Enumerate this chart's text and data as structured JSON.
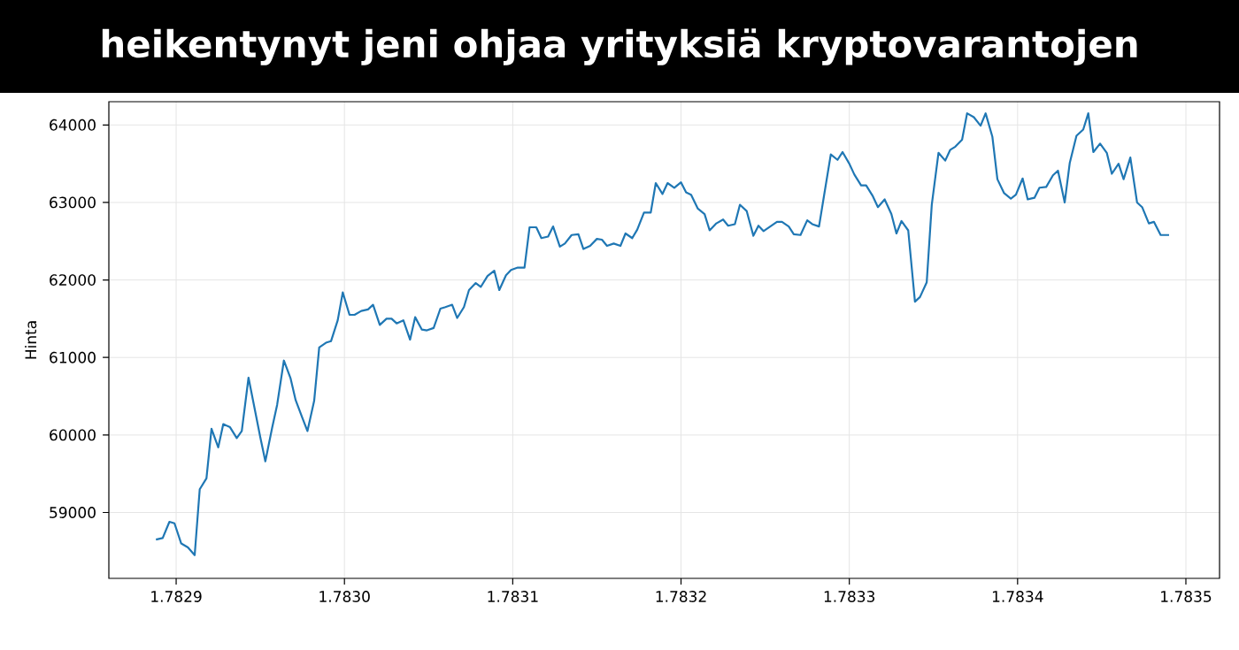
{
  "chart_data": {
    "type": "line",
    "title": "heikentynyt jeni ohjaa yrityksiä kryptovarantojen",
    "ylabel": "Hinta",
    "xlim": [
      1.78286,
      1.78352
    ],
    "ylim": [
      58150,
      64300
    ],
    "xticks": [
      1.7829,
      {
        "value": 1.783,
        "label": "1.7830"
      },
      1.7831,
      1.7832,
      1.7833,
      1.7834,
      1.7835
    ],
    "yticks": [
      59000,
      60000,
      61000,
      62000,
      63000,
      64000
    ],
    "grid": true,
    "legend": false,
    "marker": "none",
    "line_style": "solid",
    "series": [
      {
        "color": "#1f77b4",
        "x": [
          1.782888,
          1.782892,
          1.782896,
          1.782899,
          1.782903,
          1.782907,
          1.782911,
          1.782914,
          1.782918,
          1.782921,
          1.782925,
          1.782928,
          1.782932,
          1.782936,
          1.782939,
          1.782943,
          1.782946,
          1.78295,
          1.782953,
          1.782957,
          1.78296,
          1.782964,
          1.782968,
          1.782971,
          1.782975,
          1.782978,
          1.782982,
          1.782985,
          1.782989,
          1.782992,
          1.782996,
          1.782999,
          1.783003,
          1.783006,
          1.78301,
          1.783014,
          1.783017,
          1.783021,
          1.783025,
          1.783028,
          1.783031,
          1.783035,
          1.783039,
          1.783042,
          1.783046,
          1.783049,
          1.783053,
          1.783057,
          1.78306,
          1.783064,
          1.783067,
          1.783071,
          1.783074,
          1.783078,
          1.783081,
          1.783085,
          1.783089,
          1.783092,
          1.783096,
          1.783099,
          1.783103,
          1.783107,
          1.78311,
          1.783114,
          1.783117,
          1.783121,
          1.783124,
          1.783128,
          1.783131,
          1.783135,
          1.783139,
          1.783142,
          1.783146,
          1.78315,
          1.783153,
          1.783156,
          1.78316,
          1.783164,
          1.783167,
          1.783171,
          1.783174,
          1.783178,
          1.783182,
          1.783185,
          1.783189,
          1.783192,
          1.783196,
          1.7832,
          1.783203,
          1.783206,
          1.78321,
          1.783214,
          1.783217,
          1.783221,
          1.783225,
          1.783228,
          1.783232,
          1.783235,
          1.783239,
          1.783243,
          1.783246,
          1.783249,
          1.783253,
          1.783257,
          1.78326,
          1.783264,
          1.783267,
          1.783271,
          1.783275,
          1.783278,
          1.783282,
          1.783285,
          1.783289,
          1.783293,
          1.783296,
          1.7833,
          1.783303,
          1.783307,
          1.78331,
          1.783314,
          1.783317,
          1.783321,
          1.783325,
          1.783328,
          1.783331,
          1.783335,
          1.783339,
          1.783342,
          1.783346,
          1.783349,
          1.783353,
          1.783357,
          1.78336,
          1.783363,
          1.783367,
          1.78337,
          1.783374,
          1.783378,
          1.783381,
          1.783385,
          1.783388,
          1.783392,
          1.783396,
          1.783399,
          1.783403,
          1.783406,
          1.78341,
          1.783413,
          1.783417,
          1.783421,
          1.783424,
          1.783428,
          1.783431,
          1.783435,
          1.783439,
          1.783442,
          1.783445,
          1.783449,
          1.783453,
          1.783456,
          1.78346,
          1.783463,
          1.783467,
          1.783471,
          1.783474,
          1.783478,
          1.783481,
          1.783485,
          1.78349
        ],
        "values": [
          58650,
          58670,
          58880,
          58860,
          58600,
          58550,
          58450,
          59300,
          59440,
          60080,
          59840,
          60140,
          60100,
          59960,
          60050,
          60740,
          60410,
          59970,
          59660,
          60090,
          60390,
          60960,
          60730,
          60450,
          60220,
          60050,
          60440,
          61130,
          61190,
          61210,
          61480,
          61840,
          61550,
          61550,
          61600,
          61620,
          61680,
          61420,
          61500,
          61500,
          61440,
          61480,
          61230,
          61520,
          61360,
          61350,
          61380,
          61630,
          61650,
          61680,
          61510,
          61650,
          61870,
          61960,
          61910,
          62050,
          62120,
          61870,
          62060,
          62130,
          62160,
          62160,
          62680,
          62680,
          62540,
          62560,
          62690,
          62430,
          62470,
          62580,
          62590,
          62400,
          62440,
          62530,
          62520,
          62440,
          62470,
          62440,
          62600,
          62540,
          62650,
          62870,
          62870,
          63250,
          63110,
          63250,
          63190,
          63260,
          63130,
          63100,
          62920,
          62850,
          62640,
          62730,
          62780,
          62700,
          62720,
          62970,
          62890,
          62570,
          62700,
          62630,
          62690,
          62750,
          62750,
          62690,
          62590,
          62580,
          62770,
          62720,
          62690,
          63090,
          63620,
          63550,
          63650,
          63500,
          63360,
          63220,
          63220,
          63080,
          62940,
          63040,
          62850,
          62600,
          62760,
          62640,
          61720,
          61780,
          61970,
          62970,
          63640,
          63540,
          63680,
          63720,
          63810,
          64150,
          64100,
          63990,
          64150,
          63850,
          63300,
          63120,
          63050,
          63100,
          63310,
          63040,
          63060,
          63190,
          63200,
          63350,
          63410,
          63000,
          63510,
          63860,
          63940,
          64150,
          63650,
          63760,
          63640,
          63370,
          63500,
          63300,
          63580,
          63000,
          62940,
          62730,
          62750,
          62580,
          62580
        ]
      }
    ]
  }
}
